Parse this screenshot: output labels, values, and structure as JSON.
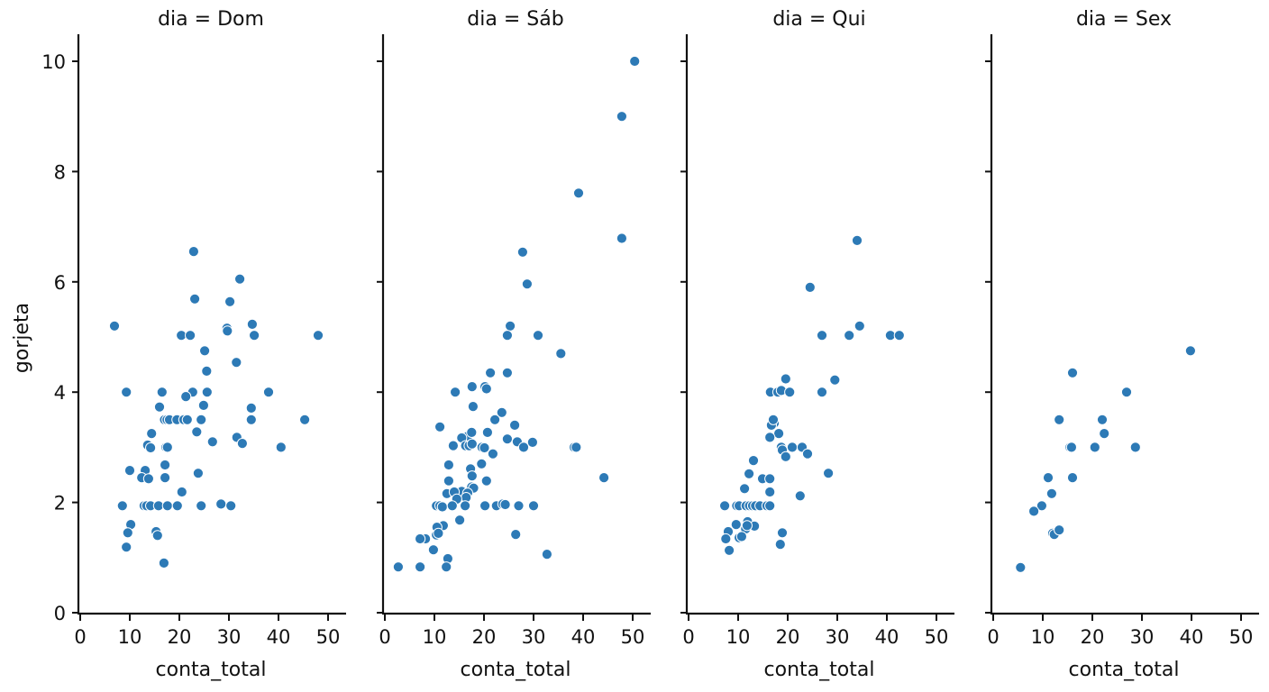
{
  "figure": {
    "ylabel": "gorjeta",
    "marker_color": "#2d7ab6",
    "marker_edge_color": "#ffffff"
  },
  "chart_data": {
    "type": "scatter",
    "facet_var": "dia",
    "xlabel": "conta_total",
    "ylabel": "gorjeta",
    "xlim": [
      0,
      54
    ],
    "ylim": [
      0,
      10.5
    ],
    "xticks": [
      0,
      10,
      20,
      30,
      40,
      50
    ],
    "yticks": [
      0,
      2,
      4,
      6,
      8,
      10
    ],
    "grid": false,
    "sharey": true,
    "panels": [
      {
        "title": "dia = Dom",
        "x": [
          6.9,
          9.3,
          22.9,
          32.2,
          23.1,
          30.2,
          29.6,
          29.7,
          34.7,
          35.1,
          48.0,
          20.4,
          22.2,
          25.1,
          31.5,
          25.5,
          16.5,
          22.7,
          25.6,
          38.0,
          21.3,
          16.0,
          24.9,
          34.5,
          17.0,
          17.5,
          18.0,
          19.5,
          20.9,
          21.6,
          24.4,
          34.5,
          45.3,
          14.4,
          23.5,
          31.6,
          26.7,
          32.7,
          13.6,
          14.2,
          17.3,
          17.6,
          40.5,
          17.1,
          10.0,
          13.1,
          23.8,
          12.4,
          13.8,
          17.1,
          20.5,
          8.5,
          12.9,
          13.4,
          14.2,
          15.8,
          17.6,
          19.6,
          24.4,
          28.4,
          30.4,
          10.2,
          9.6,
          9.3,
          15.3,
          15.6,
          16.9
        ],
        "y": [
          5.2,
          4.0,
          6.55,
          6.05,
          5.69,
          5.64,
          5.16,
          5.11,
          5.23,
          5.03,
          5.03,
          5.03,
          5.03,
          4.75,
          4.54,
          4.38,
          4.0,
          4.0,
          4.0,
          4.0,
          3.92,
          3.73,
          3.76,
          3.71,
          3.5,
          3.5,
          3.5,
          3.5,
          3.5,
          3.5,
          3.5,
          3.5,
          3.5,
          3.25,
          3.28,
          3.18,
          3.1,
          3.07,
          3.04,
          2.99,
          3.0,
          3.0,
          3.0,
          2.68,
          2.58,
          2.58,
          2.53,
          2.45,
          2.43,
          2.45,
          2.19,
          1.94,
          1.94,
          1.94,
          1.94,
          1.94,
          1.94,
          1.94,
          1.94,
          1.97,
          1.94,
          1.6,
          1.45,
          1.19,
          1.47,
          1.4,
          0.9
        ]
      },
      {
        "title": "dia = Sáb",
        "x": [
          50.4,
          47.8,
          39.1,
          47.8,
          27.8,
          28.7,
          25.3,
          24.7,
          30.9,
          35.5,
          21.3,
          24.7,
          20.2,
          20.5,
          17.6,
          14.2,
          17.8,
          23.6,
          22.2,
          11.1,
          26.2,
          16.7,
          20.7,
          15.5,
          17.5,
          24.7,
          13.8,
          16.3,
          17.0,
          17.6,
          19.6,
          20.1,
          26.7,
          28.0,
          29.8,
          38.2,
          38.6,
          21.8,
          12.9,
          19.5,
          17.3,
          17.6,
          12.9,
          20.5,
          17.5,
          17.9,
          15.5,
          16.7,
          12.5,
          14.0,
          16.4,
          14.5,
          44.2,
          10.4,
          11.1,
          11.6,
          13.6,
          16.2,
          20.2,
          22.5,
          23.8,
          24.3,
          27.0,
          30.0,
          11.8,
          10.5,
          15.1,
          10.4,
          10.8,
          8.2,
          7.1,
          9.8,
          26.4,
          32.7,
          12.7,
          12.4,
          2.7,
          7.1
        ],
        "y": [
          10.0,
          9.0,
          7.61,
          6.79,
          6.54,
          5.96,
          5.2,
          5.03,
          5.03,
          4.7,
          4.35,
          4.35,
          4.1,
          4.06,
          4.1,
          4.0,
          3.74,
          3.63,
          3.5,
          3.37,
          3.4,
          3.2,
          3.27,
          3.17,
          3.27,
          3.15,
          3.03,
          3.03,
          3.03,
          3.06,
          3.0,
          2.99,
          3.1,
          3.0,
          3.09,
          3.0,
          3.0,
          2.88,
          2.68,
          2.7,
          2.61,
          2.48,
          2.39,
          2.39,
          2.28,
          2.26,
          2.2,
          2.17,
          2.16,
          2.19,
          2.09,
          2.06,
          2.45,
          1.94,
          1.94,
          1.92,
          1.94,
          1.94,
          1.94,
          1.94,
          1.97,
          1.96,
          1.94,
          1.94,
          1.58,
          1.55,
          1.68,
          1.41,
          1.44,
          1.34,
          1.34,
          1.14,
          1.42,
          1.06,
          0.98,
          0.83,
          0.83,
          0.83
        ]
      },
      {
        "title": "dia = Qui",
        "x": [
          34.0,
          24.5,
          34.5,
          26.9,
          32.4,
          40.7,
          42.5,
          29.5,
          19.6,
          16.5,
          18.0,
          18.7,
          20.4,
          26.9,
          17.3,
          16.7,
          17.1,
          18.2,
          16.4,
          18.7,
          18.9,
          20.9,
          22.9,
          24.0,
          19.6,
          13.1,
          12.2,
          28.2,
          14.9,
          16.4,
          11.3,
          16.4,
          22.5,
          7.3,
          9.7,
          10.2,
          11.6,
          12.3,
          12.9,
          13.5,
          14.4,
          15.8,
          16.4,
          9.6,
          11.9,
          13.3,
          11.5,
          11.8,
          8.0,
          10.2,
          10.7,
          7.5,
          18.9,
          18.5,
          8.2
        ],
        "y": [
          6.75,
          5.9,
          5.2,
          5.03,
          5.03,
          5.03,
          5.03,
          4.22,
          4.24,
          4.0,
          4.0,
          4.03,
          4.0,
          4.0,
          3.44,
          3.4,
          3.5,
          3.25,
          3.18,
          3.0,
          2.95,
          3.0,
          3.0,
          2.88,
          2.83,
          2.76,
          2.52,
          2.53,
          2.43,
          2.43,
          2.25,
          2.19,
          2.12,
          1.94,
          1.94,
          1.94,
          1.94,
          1.94,
          1.94,
          1.94,
          1.94,
          1.94,
          1.94,
          1.6,
          1.65,
          1.57,
          1.52,
          1.58,
          1.47,
          1.36,
          1.38,
          1.34,
          1.45,
          1.24,
          1.13
        ]
      },
      {
        "title": "dia = Sex",
        "x": [
          39.8,
          16.0,
          26.9,
          13.3,
          22.0,
          22.4,
          15.5,
          15.8,
          20.5,
          28.7,
          11.1,
          16.0,
          11.8,
          9.8,
          8.2,
          12.0,
          12.3,
          13.3,
          5.5
        ],
        "y": [
          4.75,
          4.35,
          4.0,
          3.5,
          3.5,
          3.25,
          3.0,
          3.0,
          3.0,
          3.0,
          2.45,
          2.45,
          2.16,
          1.94,
          1.84,
          1.44,
          1.42,
          1.5,
          0.82
        ]
      }
    ]
  }
}
